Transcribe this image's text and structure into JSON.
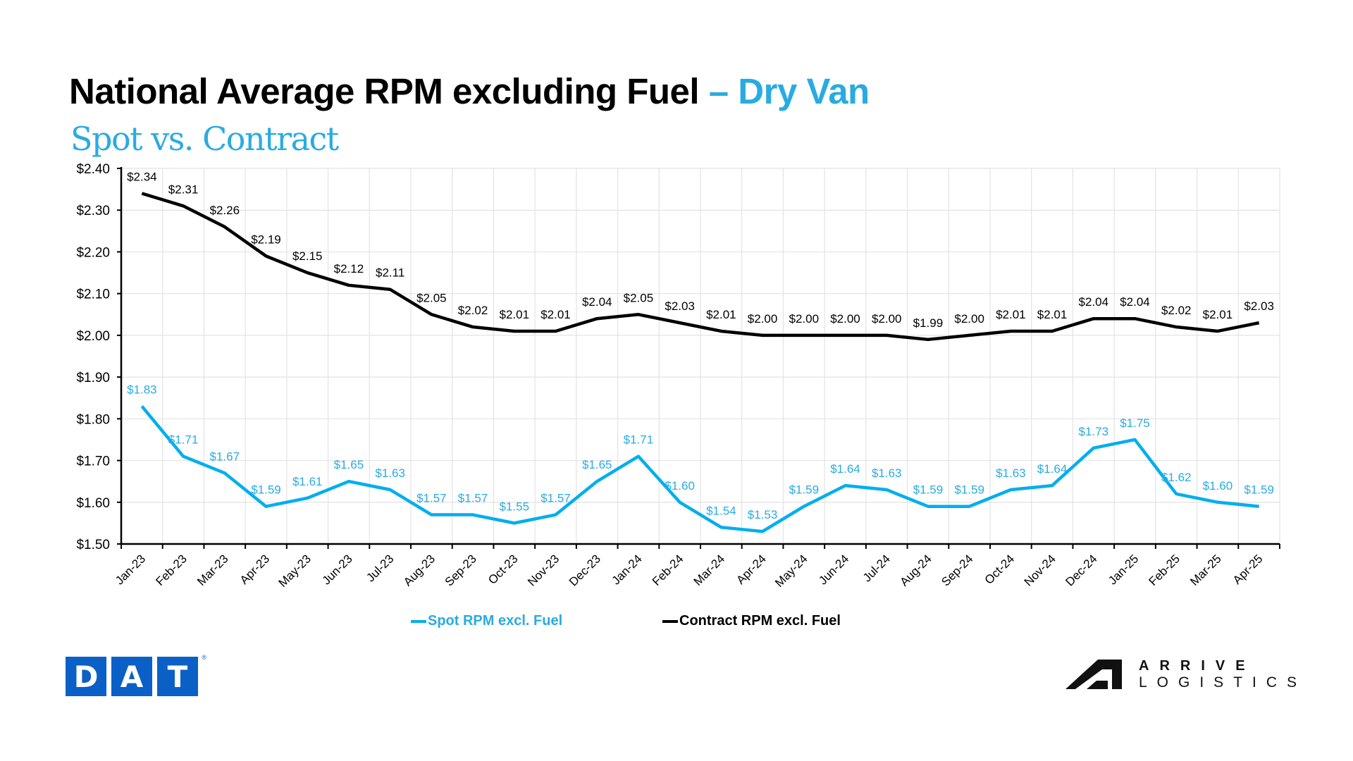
{
  "header": {
    "title_main": "National Average RPM excluding Fuel",
    "title_accent": " – Dry Van",
    "subtitle": "Spot vs. Contract"
  },
  "colors": {
    "spot": "#00AEEF",
    "contract": "#000000",
    "accent": "#29ABE2",
    "dat_blue": "#0A60C6",
    "grid": "#E3E3E3"
  },
  "legend": {
    "spot_label": "Spot RPM excl. Fuel",
    "contract_label": "Contract RPM excl. Fuel"
  },
  "logos": {
    "dat_letters": [
      "D",
      "A",
      "T"
    ],
    "dat_reg": "®",
    "arrive_line1": "ARRIVE",
    "arrive_line2": "LOGISTICS"
  },
  "chart_data": {
    "type": "line",
    "title": "National Average RPM excluding Fuel – Dry Van",
    "subtitle": "Spot vs. Contract",
    "xlabel": "",
    "ylabel": "",
    "ylim": [
      1.5,
      2.4
    ],
    "yticks": [
      1.5,
      1.6,
      1.7,
      1.8,
      1.9,
      2.0,
      2.1,
      2.2,
      2.3,
      2.4
    ],
    "ytick_labels": [
      "$1.50",
      "$1.60",
      "$1.70",
      "$1.80",
      "$1.90",
      "$2.00",
      "$2.10",
      "$2.20",
      "$2.30",
      "$2.40"
    ],
    "grid": true,
    "legend_position": "bottom",
    "categories": [
      "Jan-23",
      "Feb-23",
      "Mar-23",
      "Apr-23",
      "May-23",
      "Jun-23",
      "Jul-23",
      "Aug-23",
      "Sep-23",
      "Oct-23",
      "Nov-23",
      "Dec-23",
      "Jan-24",
      "Feb-24",
      "Mar-24",
      "Apr-24",
      "May-24",
      "Jun-24",
      "Jul-24",
      "Aug-24",
      "Sep-24",
      "Oct-24",
      "Nov-24",
      "Dec-24",
      "Jan-25",
      "Feb-25",
      "Mar-25",
      "Apr-25"
    ],
    "series": [
      {
        "name": "Spot RPM excl. Fuel",
        "color": "#00AEEF",
        "values": [
          1.83,
          1.71,
          1.67,
          1.59,
          1.61,
          1.65,
          1.63,
          1.57,
          1.57,
          1.55,
          1.57,
          1.65,
          1.71,
          1.6,
          1.54,
          1.53,
          1.59,
          1.64,
          1.63,
          1.59,
          1.59,
          1.63,
          1.64,
          1.73,
          1.75,
          1.62,
          1.6,
          1.59
        ]
      },
      {
        "name": "Contract RPM excl. Fuel",
        "color": "#000000",
        "values": [
          2.34,
          2.31,
          2.26,
          2.19,
          2.15,
          2.12,
          2.11,
          2.05,
          2.02,
          2.01,
          2.01,
          2.04,
          2.05,
          2.03,
          2.01,
          2.0,
          2.0,
          2.0,
          2.0,
          1.99,
          2.0,
          2.01,
          2.01,
          2.04,
          2.04,
          2.02,
          2.01,
          2.03
        ]
      }
    ]
  }
}
